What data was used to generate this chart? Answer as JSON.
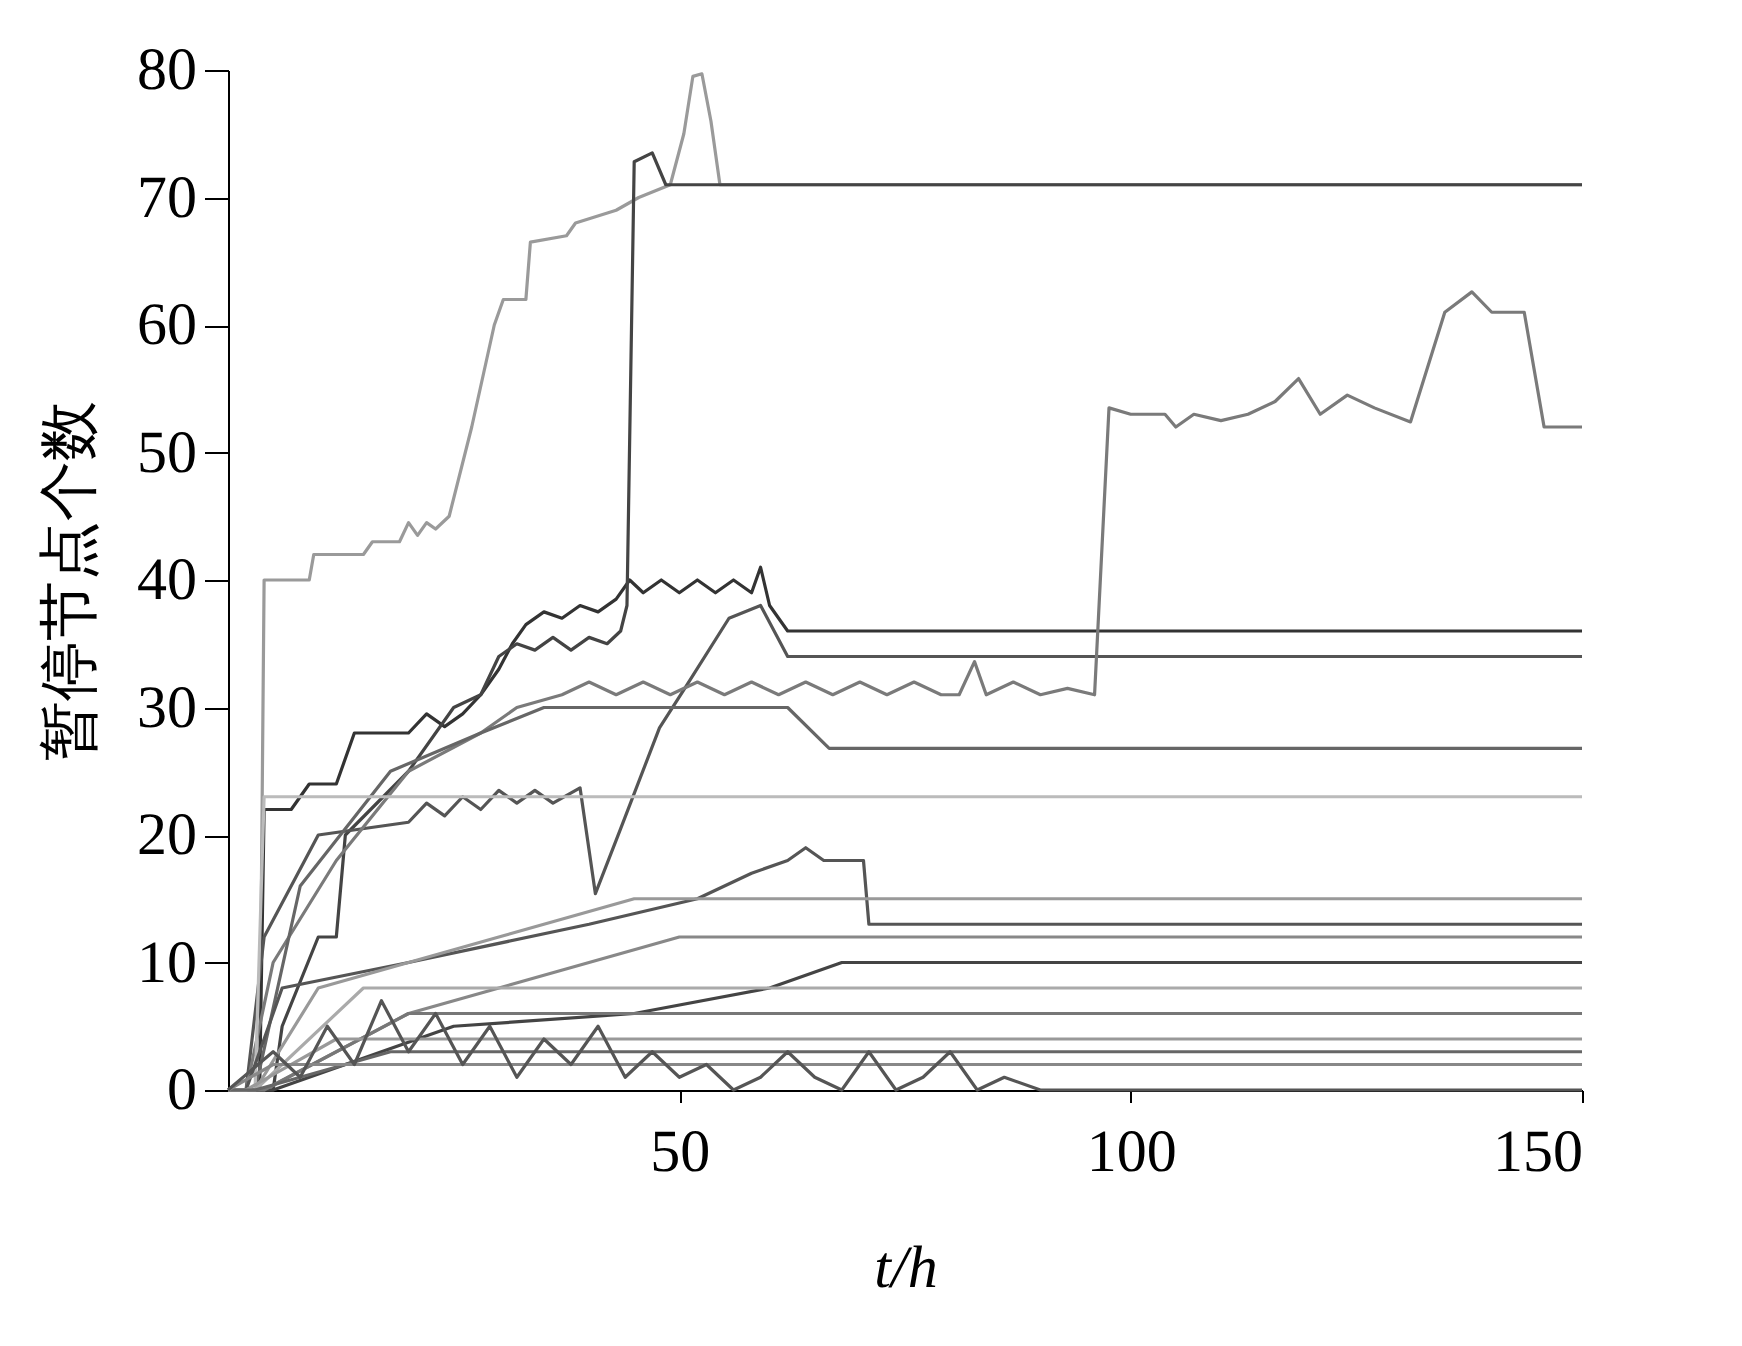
{
  "chart_data": {
    "type": "line",
    "xlabel": "t/h",
    "ylabel": "暂停节点个数",
    "xlim": [
      0,
      150
    ],
    "xticks": [
      50,
      100,
      150
    ],
    "ylim": [
      0,
      80
    ],
    "yticks": [
      0,
      10,
      20,
      30,
      40,
      50,
      60,
      70,
      80
    ],
    "grid": false,
    "legend": false,
    "marker": "none",
    "line_style": "solid",
    "series": [
      {
        "color": "#9a9a9a",
        "x": [
          0,
          3.5,
          4,
          9,
          9.5,
          15,
          16,
          19,
          20,
          21,
          22,
          23,
          24.5,
          27,
          29.5,
          30.5,
          33,
          33.5,
          37.5,
          38.5,
          43,
          45.5,
          49,
          50.5,
          51.5,
          52.5,
          53.5,
          54.5,
          150
        ],
        "values": [
          0,
          0,
          40,
          40,
          42,
          42,
          43,
          43,
          44.5,
          43.5,
          44.5,
          44,
          45,
          52,
          60,
          62,
          62,
          66.5,
          67,
          68,
          69,
          70,
          71,
          75,
          79.5,
          79.7,
          76,
          71,
          71
        ]
      },
      {
        "color": "#333333",
        "x": [
          0,
          3.5,
          4,
          7,
          9,
          12,
          14,
          20,
          22,
          24,
          26,
          28,
          30,
          31.5,
          33,
          35,
          37,
          39,
          41,
          43,
          44.5,
          46,
          48,
          50,
          52,
          54,
          56,
          58,
          59,
          60,
          62,
          150
        ],
        "values": [
          0,
          0,
          22,
          22,
          24,
          24,
          28,
          28,
          29.5,
          28.5,
          29.5,
          31,
          33,
          35,
          36.5,
          37.5,
          37,
          38,
          37.5,
          38.5,
          40,
          39,
          40,
          39,
          40,
          39,
          40,
          39,
          41,
          38,
          36,
          36
        ]
      },
      {
        "color": "#444444",
        "x": [
          0,
          5,
          6,
          10,
          12,
          13,
          20,
          25,
          28,
          30,
          32,
          34,
          36,
          38,
          40,
          42,
          43.5,
          44.2,
          45,
          47,
          48.5,
          150
        ],
        "values": [
          0,
          0,
          5,
          12,
          12,
          20,
          25,
          30,
          31,
          34,
          35,
          34.5,
          35.5,
          34.5,
          35.5,
          35,
          36,
          38,
          72.8,
          73.5,
          71,
          71
        ]
      },
      {
        "color": "#555555",
        "x": [
          0,
          2,
          4,
          10,
          20,
          22,
          24,
          26,
          28,
          30,
          32,
          34,
          36,
          39,
          40.7,
          43.5,
          47.8,
          50.6,
          55.5,
          59,
          62,
          150
        ],
        "values": [
          0,
          0,
          12,
          20,
          21,
          22.5,
          21.5,
          23,
          22,
          23.5,
          22.5,
          23.5,
          22.5,
          23.7,
          15.4,
          20.5,
          28.4,
          31.5,
          37,
          38,
          34,
          34
        ]
      },
      {
        "color": "#7a7a7a",
        "x": [
          0,
          2,
          5,
          12,
          20,
          28,
          32,
          37,
          40,
          43,
          46,
          49,
          52,
          55,
          58,
          61,
          64,
          67,
          70,
          73,
          76,
          79,
          81,
          82.7,
          84,
          87,
          90,
          93,
          96,
          97.6,
          100,
          103.8,
          105,
          107,
          110,
          113,
          116,
          118.6,
          121,
          124,
          127,
          131,
          134.8,
          137.8,
          140,
          143.6,
          145.8,
          150
        ],
        "values": [
          0,
          0,
          10,
          18,
          25,
          28,
          30,
          31,
          32,
          31,
          32,
          31,
          32,
          31,
          32,
          31,
          32,
          31,
          32,
          31,
          32,
          31,
          31,
          33.6,
          31,
          32,
          31,
          31.5,
          31,
          53.5,
          53,
          53,
          52,
          53,
          52.5,
          53,
          54,
          55.8,
          53,
          54.5,
          53.5,
          52.4,
          61,
          62.6,
          61,
          61,
          52,
          52
        ]
      },
      {
        "color": "#666666",
        "x": [
          0,
          3,
          8,
          18,
          28,
          35,
          62,
          66.6,
          150
        ],
        "values": [
          0,
          0,
          16,
          25,
          28,
          30,
          30,
          26.8,
          26.8
        ]
      },
      {
        "color": "#bbbbbb",
        "x": [
          0,
          3,
          4,
          150
        ],
        "values": [
          0,
          0,
          23,
          23
        ]
      },
      {
        "color": "#555555",
        "x": [
          0,
          2,
          6,
          20,
          40,
          52,
          58,
          62,
          64,
          66,
          70.4,
          71,
          150
        ],
        "values": [
          0,
          0,
          8,
          10,
          13,
          15,
          17,
          18,
          19,
          18,
          18,
          13,
          13
        ]
      },
      {
        "color": "#999999",
        "x": [
          0,
          3,
          10,
          30,
          45,
          150
        ],
        "values": [
          0,
          0,
          8,
          12,
          15,
          15
        ]
      },
      {
        "color": "#888888",
        "x": [
          0,
          4,
          20,
          50,
          150
        ],
        "values": [
          0,
          0,
          6,
          12,
          12
        ]
      },
      {
        "color": "#444444",
        "x": [
          0,
          5,
          25,
          45,
          60,
          68,
          150
        ],
        "values": [
          0,
          0,
          5,
          6,
          8,
          10,
          10
        ]
      },
      {
        "color": "#aaaaaa",
        "x": [
          0,
          3,
          15,
          150
        ],
        "values": [
          0,
          0,
          8,
          8
        ]
      },
      {
        "color": "#777777",
        "x": [
          0,
          4,
          20,
          150
        ],
        "values": [
          0,
          0,
          6,
          6
        ]
      },
      {
        "color": "#999999",
        "x": [
          0,
          2,
          12,
          150
        ],
        "values": [
          0,
          0,
          4,
          4
        ]
      },
      {
        "color": "#666666",
        "x": [
          0,
          3,
          18,
          150
        ],
        "values": [
          0,
          0,
          3,
          3
        ]
      },
      {
        "color": "#888888",
        "x": [
          0,
          5,
          150
        ],
        "values": [
          0,
          2,
          2
        ]
      },
      {
        "color": "#555555",
        "x": [
          0,
          5,
          8,
          11,
          14,
          17,
          20,
          23,
          26,
          29,
          32,
          35,
          38,
          41,
          44,
          47,
          50,
          53,
          56,
          59,
          62,
          65,
          68,
          71,
          74,
          77,
          80,
          83,
          86,
          90,
          150
        ],
        "values": [
          0,
          3,
          1,
          5,
          2,
          7,
          3,
          6,
          2,
          5,
          1,
          4,
          2,
          5,
          1,
          3,
          1,
          2,
          0,
          1,
          3,
          1,
          0,
          3,
          0,
          1,
          3,
          0,
          1,
          0,
          0
        ]
      }
    ]
  }
}
